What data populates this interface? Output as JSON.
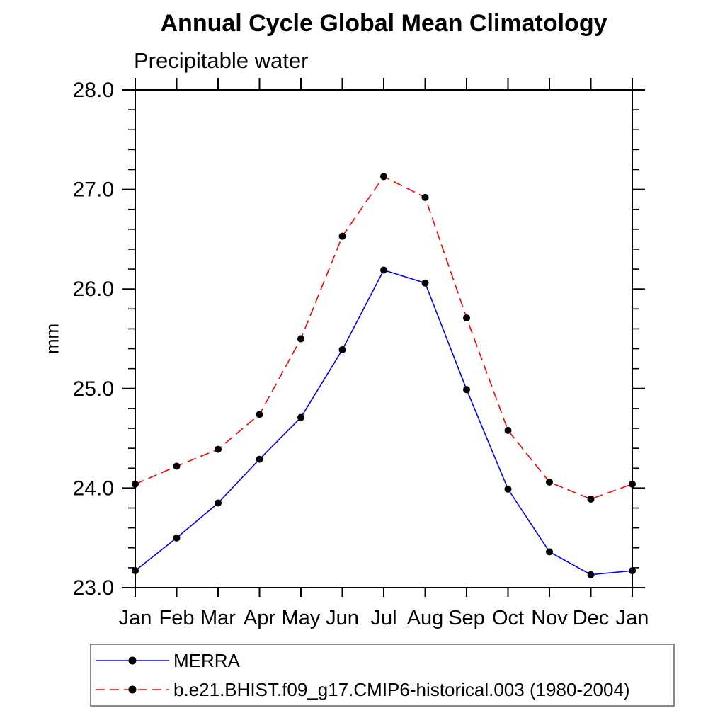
{
  "page": {
    "background": "#ffffff"
  },
  "chart_data": {
    "type": "line",
    "title": "Annual Cycle Global Mean Climatology",
    "subtitle": "Precipitable water",
    "ylabel": "mm",
    "xlabel": "",
    "categories": [
      "Jan",
      "Feb",
      "Mar",
      "Apr",
      "May",
      "Jun",
      "Jul",
      "Aug",
      "Sep",
      "Oct",
      "Nov",
      "Dec",
      "Jan"
    ],
    "ylim": [
      23.0,
      28.0
    ],
    "y_tick_labels": [
      "23.0",
      "24.0",
      "25.0",
      "26.0",
      "27.0",
      "28.0"
    ],
    "y_major_tick_interval": 1.0,
    "y_minor_tick_interval": 0.2,
    "grid": false,
    "frame": "box-with-outward-ticks",
    "marker": "filled-black-circle",
    "axis_color": "#000000",
    "legend_border_color": "#888888",
    "legend_position": "below-plot-left-box",
    "series": [
      {
        "name": "MERRA",
        "color": "#0000ff",
        "style": "solid",
        "values": [
          23.17,
          23.5,
          23.85,
          24.29,
          24.71,
          25.39,
          26.19,
          26.06,
          24.99,
          23.99,
          23.36,
          23.13,
          23.17
        ]
      },
      {
        "name": "b.e21.BHIST.f09_g17.CMIP6-historical.003 (1980-2004)",
        "color": "#ff0000",
        "style": "dashed",
        "values": [
          24.04,
          24.22,
          24.39,
          24.74,
          25.5,
          26.53,
          27.13,
          26.92,
          25.71,
          24.58,
          24.06,
          23.89,
          24.04
        ]
      }
    ]
  }
}
